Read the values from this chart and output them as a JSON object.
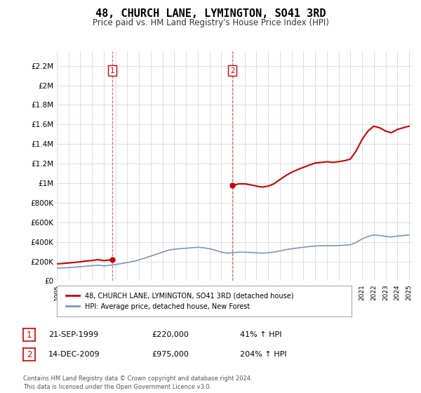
{
  "title": "48, CHURCH LANE, LYMINGTON, SO41 3RD",
  "subtitle": "Price paid vs. HM Land Registry's House Price Index (HPI)",
  "title_fontsize": 11,
  "subtitle_fontsize": 8.5,
  "ylabel_ticks": [
    "£0",
    "£200K",
    "£400K",
    "£600K",
    "£800K",
    "£1M",
    "£1.2M",
    "£1.4M",
    "£1.6M",
    "£1.8M",
    "£2M",
    "£2.2M"
  ],
  "ylabel_values": [
    0,
    200000,
    400000,
    600000,
    800000,
    1000000,
    1200000,
    1400000,
    1600000,
    1800000,
    2000000,
    2200000
  ],
  "ylim": [
    0,
    2350000
  ],
  "x_start_year": 1995,
  "x_end_year": 2025,
  "sale1_date": 1999.72,
  "sale1_price": 220000,
  "sale2_date": 2009.95,
  "sale2_price": 975000,
  "legend_red": "48, CHURCH LANE, LYMINGTON, SO41 3RD (detached house)",
  "legend_blue": "HPI: Average price, detached house, New Forest",
  "annotation1_label": "1",
  "annotation1_date": "21-SEP-1999",
  "annotation1_price": "£220,000",
  "annotation1_hpi": "41% ↑ HPI",
  "annotation2_label": "2",
  "annotation2_date": "14-DEC-2009",
  "annotation2_price": "£975,000",
  "annotation2_hpi": "204% ↑ HPI",
  "footer": "Contains HM Land Registry data © Crown copyright and database right 2024.\nThis data is licensed under the Open Government Licence v3.0.",
  "red_color": "#cc0000",
  "blue_color": "#7799bb",
  "bg_color": "#ffffff",
  "grid_color": "#dddddd",
  "years_hpi": [
    1995,
    1995.5,
    1996,
    1996.5,
    1997,
    1997.5,
    1998,
    1998.5,
    1999,
    1999.5,
    2000,
    2000.5,
    2001,
    2001.5,
    2002,
    2002.5,
    2003,
    2003.5,
    2004,
    2004.5,
    2005,
    2005.5,
    2006,
    2006.5,
    2007,
    2007.5,
    2008,
    2008.5,
    2009,
    2009.5,
    2010,
    2010.5,
    2011,
    2011.5,
    2012,
    2012.5,
    2013,
    2013.5,
    2014,
    2014.5,
    2015,
    2015.5,
    2016,
    2016.5,
    2017,
    2017.5,
    2018,
    2018.5,
    2019,
    2019.5,
    2020,
    2020.5,
    2021,
    2021.5,
    2022,
    2022.5,
    2023,
    2023.5,
    2024,
    2024.5,
    2025
  ],
  "hpi_values": [
    130000,
    133000,
    137000,
    141000,
    146000,
    152000,
    156000,
    162000,
    155000,
    160000,
    168000,
    178000,
    188000,
    200000,
    215000,
    235000,
    255000,
    275000,
    295000,
    315000,
    325000,
    330000,
    335000,
    340000,
    345000,
    340000,
    330000,
    315000,
    295000,
    285000,
    290000,
    295000,
    295000,
    292000,
    288000,
    285000,
    288000,
    295000,
    308000,
    320000,
    330000,
    338000,
    345000,
    352000,
    358000,
    360000,
    362000,
    360000,
    362000,
    365000,
    370000,
    395000,
    430000,
    455000,
    470000,
    465000,
    455000,
    450000,
    460000,
    465000,
    470000
  ]
}
